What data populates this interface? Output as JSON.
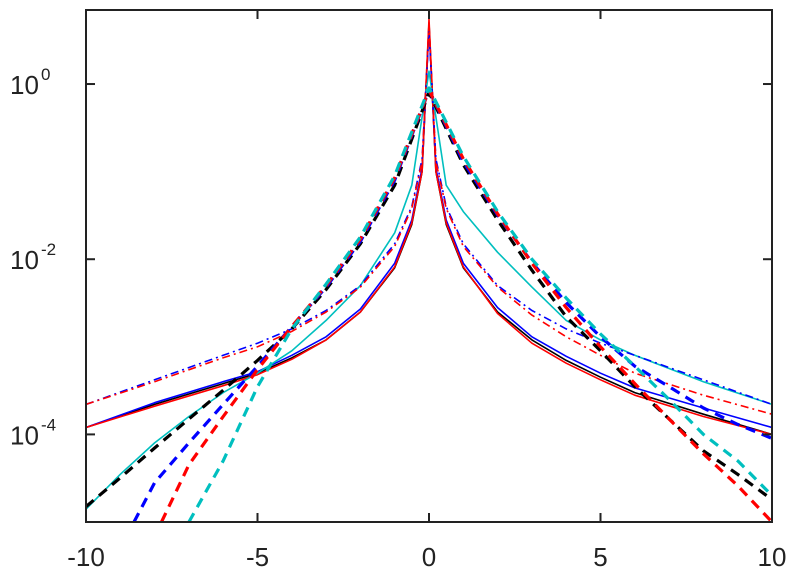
{
  "chart_data": {
    "type": "line",
    "title": "",
    "xlabel": "",
    "ylabel": "",
    "xlim": [
      -10,
      10
    ],
    "ylim": [
      1e-05,
      7
    ],
    "yscale": "log",
    "grid": false,
    "legend": "none",
    "x_ticks": [
      "-10",
      "-5",
      "0",
      "5",
      "10"
    ],
    "y_ticks": [
      {
        "value": 0.0001,
        "base": "10",
        "exp": "-4"
      },
      {
        "value": 0.01,
        "base": "10",
        "exp": "-2"
      },
      {
        "value": 1,
        "base": "10",
        "exp": "0"
      }
    ],
    "series": [
      {
        "color": "#000000",
        "style": "solid",
        "x": [
          -10,
          -8,
          -6,
          -5,
          -4,
          -3,
          -2,
          -1,
          -0.5,
          -0.2,
          0,
          0.2,
          0.5,
          1,
          2,
          3,
          4,
          5,
          6,
          8,
          10
        ],
        "y": [
          0.00012,
          0.00022,
          0.00038,
          0.0005,
          0.00075,
          0.0012,
          0.0025,
          0.008,
          0.025,
          0.1,
          5,
          0.1,
          0.025,
          0.008,
          0.0025,
          0.0012,
          0.0007,
          0.00045,
          0.0003,
          0.00017,
          0.0001
        ]
      },
      {
        "color": "#0000ff",
        "style": "solid",
        "x": [
          -10,
          -8,
          -6,
          -5,
          -4,
          -3,
          -2,
          -1,
          -0.5,
          -0.2,
          0,
          0.2,
          0.5,
          1,
          2,
          3,
          4,
          5,
          6,
          8,
          10
        ],
        "y": [
          0.00012,
          0.00023,
          0.0004,
          0.00052,
          0.0008,
          0.0013,
          0.0027,
          0.009,
          0.028,
          0.11,
          4.5,
          0.11,
          0.028,
          0.009,
          0.0028,
          0.0013,
          0.00078,
          0.0005,
          0.00034,
          0.0002,
          0.00012
        ]
      },
      {
        "color": "#ff0000",
        "style": "solid",
        "x": [
          -10,
          -8,
          -6,
          -5,
          -4,
          -3,
          -2,
          -1,
          -0.5,
          -0.2,
          0,
          0.2,
          0.5,
          1,
          2,
          3,
          4,
          5,
          6,
          8,
          10
        ],
        "y": [
          0.00012,
          0.00021,
          0.00036,
          0.00048,
          0.00072,
          0.0012,
          0.0025,
          0.0082,
          0.026,
          0.1,
          5.5,
          0.1,
          0.026,
          0.0082,
          0.0024,
          0.0011,
          0.00065,
          0.00042,
          0.00028,
          0.00016,
          0.0001
        ]
      },
      {
        "color": "#00bfbf",
        "style": "solid",
        "x": [
          -10,
          -9,
          -8,
          -7,
          -6,
          -5,
          -4,
          -3,
          -2,
          -1,
          -0.5,
          0,
          0.5,
          1,
          2,
          3,
          4,
          5,
          6,
          8,
          10
        ],
        "y": [
          1.4e-05,
          3.5e-05,
          8e-05,
          0.00016,
          0.0003,
          0.0005,
          0.0009,
          0.002,
          0.005,
          0.02,
          0.07,
          1.4,
          0.07,
          0.035,
          0.012,
          0.0048,
          0.002,
          0.0012,
          0.0008,
          0.0004,
          0.00022
        ]
      },
      {
        "color": "#0000ff",
        "style": "dashdot",
        "x": [
          -10,
          -8,
          -6,
          -5,
          -4,
          -3,
          -2,
          -1,
          -0.5,
          -0.2,
          0,
          0.2,
          0.5,
          1,
          2,
          3,
          4,
          5,
          6,
          8,
          10
        ],
        "y": [
          0.00022,
          0.00042,
          0.0008,
          0.0011,
          0.0016,
          0.0026,
          0.005,
          0.015,
          0.04,
          0.14,
          4,
          0.14,
          0.04,
          0.015,
          0.005,
          0.0026,
          0.0016,
          0.0011,
          0.0008,
          0.00042,
          0.00022
        ]
      },
      {
        "color": "#ff0000",
        "style": "dashdot",
        "x": [
          -10,
          -8,
          -6,
          -5,
          -4,
          -3,
          -2,
          -1,
          -0.5,
          -0.2,
          0,
          0.2,
          0.5,
          1,
          2,
          3,
          4,
          5,
          6,
          8,
          10
        ],
        "y": [
          0.00022,
          0.0004,
          0.00075,
          0.001,
          0.0015,
          0.0025,
          0.0048,
          0.014,
          0.038,
          0.13,
          4.8,
          0.13,
          0.038,
          0.014,
          0.0048,
          0.0023,
          0.0013,
          0.0008,
          0.0005,
          0.00028,
          0.00017
        ]
      },
      {
        "color": "#000000",
        "style": "dashed",
        "x": [
          -10,
          -9,
          -8,
          -7,
          -6,
          -5,
          -4,
          -3,
          -2,
          -1,
          0,
          1,
          2,
          3,
          4,
          5,
          6,
          7,
          8,
          9,
          10
        ],
        "y": [
          1.5e-05,
          3.2e-05,
          7e-05,
          0.00015,
          0.00032,
          0.0007,
          0.0016,
          0.0045,
          0.015,
          0.07,
          0.8,
          0.12,
          0.028,
          0.0075,
          0.0022,
          0.0009,
          0.00035,
          0.00015,
          6.5e-05,
          3.5e-05,
          1.8e-05
        ]
      },
      {
        "color": "#0000ff",
        "style": "dashed",
        "x": [
          -8.6,
          -8,
          -7,
          -6,
          -5,
          -4,
          -3,
          -2,
          -1,
          0,
          1,
          2,
          3,
          4,
          5,
          6,
          7,
          8,
          9,
          10
        ],
        "y": [
          1e-05,
          2.8e-05,
          8e-05,
          0.00022,
          0.0006,
          0.0017,
          0.0048,
          0.016,
          0.08,
          0.85,
          0.13,
          0.032,
          0.0092,
          0.0032,
          0.0013,
          0.0006,
          0.00035,
          0.0002,
          0.00013,
          9e-05
        ]
      },
      {
        "color": "#ff0000",
        "style": "dashed",
        "x": [
          -7.8,
          -7,
          -6,
          -5,
          -4,
          -3,
          -2,
          -1,
          0,
          1,
          2,
          3,
          4,
          5,
          6,
          7,
          8,
          9,
          10
        ],
        "y": [
          1e-05,
          4.5e-05,
          0.00016,
          0.00055,
          0.0017,
          0.005,
          0.017,
          0.085,
          0.85,
          0.14,
          0.033,
          0.009,
          0.0028,
          0.001,
          0.00038,
          0.00015,
          6e-05,
          2.6e-05,
          1e-05
        ]
      },
      {
        "color": "#00bfbf",
        "style": "dashed",
        "x": [
          -7,
          -6,
          -5,
          -4,
          -3,
          -2,
          -1,
          0,
          1,
          2,
          3,
          4,
          5,
          6,
          7,
          8,
          9,
          10
        ],
        "y": [
          1e-05,
          5e-05,
          0.00035,
          0.0016,
          0.0052,
          0.018,
          0.09,
          0.9,
          0.15,
          0.035,
          0.01,
          0.0036,
          0.0014,
          0.0006,
          0.00025,
          0.0001,
          5e-05,
          2e-05
        ]
      }
    ]
  }
}
